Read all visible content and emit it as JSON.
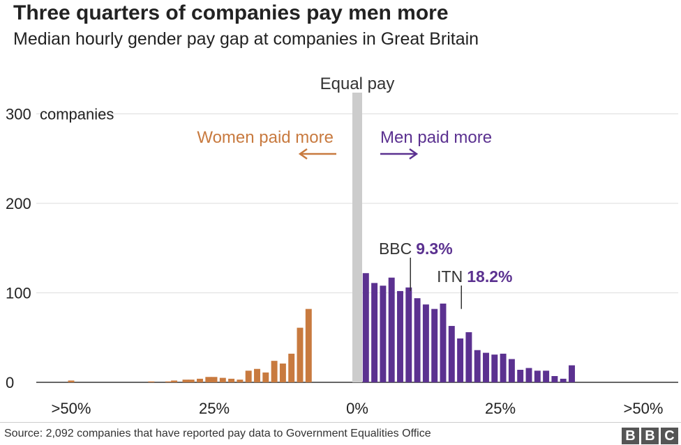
{
  "title": "Three quarters of companies pay men more",
  "subtitle": "Median hourly gender pay gap at companies in Great Britain",
  "source": "Source: 2,092 companies that have reported pay data to Government Equalities Office",
  "logo": [
    "B",
    "B",
    "C"
  ],
  "colors": {
    "women": "#c87a3f",
    "men": "#5b3190",
    "equal": "#cccccc",
    "grid": "#dddddd",
    "axis": "#333333"
  },
  "chart_data": {
    "type": "bar",
    "y_unit_label": "companies",
    "yticks": [
      0,
      100,
      200,
      300
    ],
    "ylim": [
      0,
      325
    ],
    "xlim": [
      -55,
      55
    ],
    "xticks": [
      {
        "value": -50,
        "label": ">50%"
      },
      {
        "value": -25,
        "label": "25%"
      },
      {
        "value": 0,
        "label": "0%"
      },
      {
        "value": 25,
        "label": "25%"
      },
      {
        "value": 50,
        "label": ">50%"
      }
    ],
    "grid": true,
    "bin_width": 1.33,
    "equal_pay": {
      "label": "Equal pay",
      "value": 0
    },
    "women_label": "Women paid more",
    "men_label": "Men paid more",
    "women_bins": [
      {
        "x": -50,
        "count": 2
      },
      {
        "x": -36,
        "count": 1
      },
      {
        "x": -33,
        "count": 1
      },
      {
        "x": -32,
        "count": 2
      },
      {
        "x": -30,
        "count": 3
      },
      {
        "x": -29,
        "count": 3
      },
      {
        "x": -27.5,
        "count": 4
      },
      {
        "x": -26,
        "count": 6
      },
      {
        "x": -25,
        "count": 6
      },
      {
        "x": -23.5,
        "count": 5
      },
      {
        "x": -22,
        "count": 4
      },
      {
        "x": -20.5,
        "count": 3
      },
      {
        "x": -19,
        "count": 13
      },
      {
        "x": -17.5,
        "count": 15
      },
      {
        "x": -16,
        "count": 11
      },
      {
        "x": -14.5,
        "count": 24
      },
      {
        "x": -13,
        "count": 21
      },
      {
        "x": -11.5,
        "count": 32
      },
      {
        "x": -10,
        "count": 61
      },
      {
        "x": -8.5,
        "count": 82
      }
    ],
    "men_bins": [
      {
        "x": 1.5,
        "count": 122
      },
      {
        "x": 3,
        "count": 111
      },
      {
        "x": 4.5,
        "count": 108
      },
      {
        "x": 6,
        "count": 117
      },
      {
        "x": 7.5,
        "count": 102
      },
      {
        "x": 9,
        "count": 106
      },
      {
        "x": 10.5,
        "count": 94
      },
      {
        "x": 12,
        "count": 87
      },
      {
        "x": 13.5,
        "count": 82
      },
      {
        "x": 15,
        "count": 88
      },
      {
        "x": 16.5,
        "count": 63
      },
      {
        "x": 18,
        "count": 49
      },
      {
        "x": 19.5,
        "count": 56
      },
      {
        "x": 21,
        "count": 36
      },
      {
        "x": 22.5,
        "count": 33
      },
      {
        "x": 24,
        "count": 31
      },
      {
        "x": 25.5,
        "count": 32
      },
      {
        "x": 27,
        "count": 26
      },
      {
        "x": 28.5,
        "count": 14
      },
      {
        "x": 30,
        "count": 16
      },
      {
        "x": 31.5,
        "count": 13
      },
      {
        "x": 33,
        "count": 13
      },
      {
        "x": 34.5,
        "count": 7
      },
      {
        "x": 36,
        "count": 4
      },
      {
        "x": 37.5,
        "count": 19
      }
    ],
    "annotations": [
      {
        "name": "BBC",
        "value": "9.3%",
        "x": 9.3,
        "y": 102
      },
      {
        "name": "ITN",
        "value": "18.2%",
        "x": 18.2,
        "y": 82
      }
    ]
  }
}
